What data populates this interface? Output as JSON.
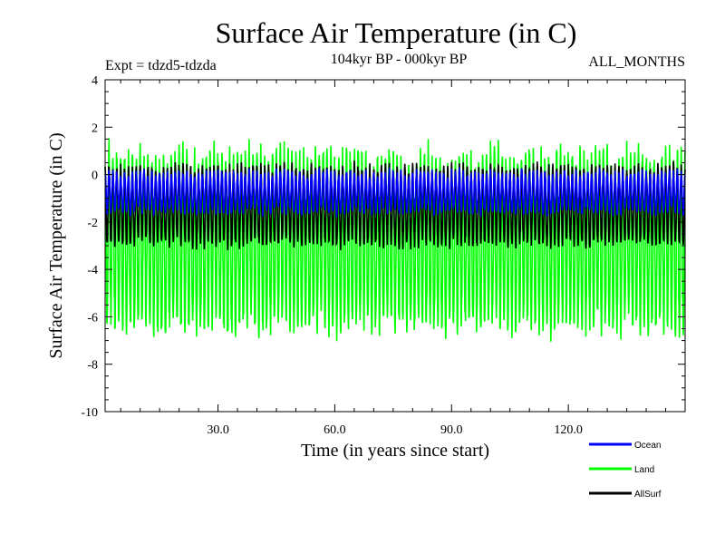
{
  "chart_data": {
    "type": "line",
    "title": "Surface Air Temperature (in C)",
    "subtitle": "104kyr BP - 000kyr BP",
    "experiment_label": "Expt = tdzd5-tdzda",
    "months_label": "ALL_MONTHS",
    "xlabel": "Time (in years since start)",
    "ylabel": "Surface Air Temperature (in C)",
    "xlim": [
      1,
      150
    ],
    "ylim": [
      -10,
      4
    ],
    "x_ticks": [
      30,
      60,
      90,
      120
    ],
    "x_tick_labels": [
      "30.0",
      "60.0",
      "90.0",
      "120.0"
    ],
    "y_ticks": [
      4,
      2,
      0,
      -2,
      -4,
      -6,
      -8,
      -10
    ],
    "y_tick_labels": [
      "4",
      "2",
      "0",
      "-2",
      "-4",
      "-6",
      "-8",
      "-10"
    ],
    "samples_per_year": 12,
    "series": [
      {
        "name": "Land",
        "color": "#00ff00",
        "mean": -2.8,
        "amplitude": 3.6,
        "noise": 0.6
      },
      {
        "name": "AllSurf",
        "color": "#000000",
        "mean": -1.3,
        "amplitude": 1.6,
        "noise": 0.25
      },
      {
        "name": "Ocean",
        "color": "#0000ff",
        "mean": -0.75,
        "amplitude": 0.8,
        "noise": 0.2
      }
    ],
    "legend": [
      {
        "name": "Ocean",
        "color": "#0000ff"
      },
      {
        "name": "Land",
        "color": "#00ff00"
      },
      {
        "name": "AllSurf",
        "color": "#000000"
      }
    ]
  }
}
